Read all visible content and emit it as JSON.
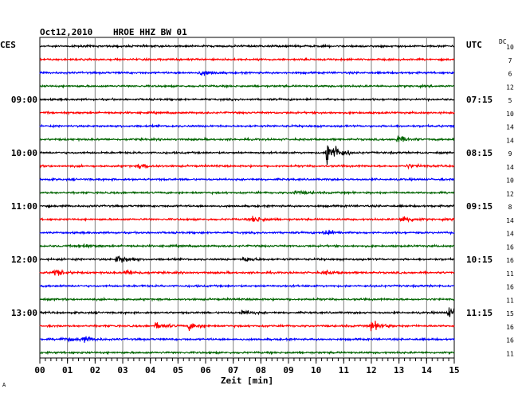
{
  "header": {
    "date": "Oct12,2010",
    "station": "HROE HHZ BW 01",
    "left_zone": "CES",
    "right_zone": "UTC",
    "dc_label": "DC"
  },
  "footer": {
    "xlabel": "Zeit [min]",
    "corner_mark": "A"
  },
  "chart_data": {
    "type": "line",
    "title": "Oct12,2010   HROE HHZ BW 01",
    "xlabel": "Zeit [min]",
    "x_range": [
      0,
      15
    ],
    "x_ticks": [
      "00",
      "01",
      "02",
      "03",
      "04",
      "05",
      "06",
      "07",
      "08",
      "09",
      "10",
      "11",
      "12",
      "13",
      "14",
      "15"
    ],
    "trace_count": 24,
    "trace_colors": [
      "#000000",
      "#ff0000",
      "#0000ff",
      "#006400"
    ],
    "left_time_labels": [
      {
        "trace": 4,
        "label": "09:00"
      },
      {
        "trace": 8,
        "label": "10:00"
      },
      {
        "trace": 12,
        "label": "11:00"
      },
      {
        "trace": 16,
        "label": "12:00"
      },
      {
        "trace": 20,
        "label": "13:00"
      }
    ],
    "right_time_labels": [
      {
        "trace": 4,
        "label": "07:15"
      },
      {
        "trace": 8,
        "label": "08:15"
      },
      {
        "trace": 12,
        "label": "09:15"
      },
      {
        "trace": 16,
        "label": "10:15"
      },
      {
        "trace": 20,
        "label": "11:15"
      }
    ],
    "dc_values": [
      "10",
      "7",
      "6",
      "12",
      "5",
      "10",
      "14",
      "14",
      "9",
      "14",
      "10",
      "12",
      "8",
      "14",
      "14",
      "16",
      "16",
      "11",
      "16",
      "11",
      "15",
      "16",
      "16",
      "11"
    ],
    "events": [
      {
        "trace": 2,
        "minute": 5.8,
        "amplitude": 0.3
      },
      {
        "trace": 7,
        "minute": 12.9,
        "amplitude": 0.4
      },
      {
        "trace": 8,
        "minute": 10.4,
        "amplitude": 1.7
      },
      {
        "trace": 9,
        "minute": 3.6,
        "amplitude": 0.25
      },
      {
        "trace": 9,
        "minute": 13.3,
        "amplitude": 0.2
      },
      {
        "trace": 11,
        "minute": 9.2,
        "amplitude": 0.2
      },
      {
        "trace": 13,
        "minute": 7.7,
        "amplitude": 0.35
      },
      {
        "trace": 13,
        "minute": 13.1,
        "amplitude": 0.4
      },
      {
        "trace": 14,
        "minute": 10.3,
        "amplitude": 0.35
      },
      {
        "trace": 15,
        "minute": 1.4,
        "amplitude": 0.25
      },
      {
        "trace": 16,
        "minute": 2.8,
        "amplitude": 0.5
      },
      {
        "trace": 16,
        "minute": 7.4,
        "amplitude": 0.25
      },
      {
        "trace": 17,
        "minute": 0.5,
        "amplitude": 0.4
      },
      {
        "trace": 17,
        "minute": 3.1,
        "amplitude": 0.3
      },
      {
        "trace": 17,
        "minute": 10.3,
        "amplitude": 0.2
      },
      {
        "trace": 20,
        "minute": 7.3,
        "amplitude": 0.25
      },
      {
        "trace": 20,
        "minute": 14.8,
        "amplitude": 0.55
      },
      {
        "trace": 21,
        "minute": 4.2,
        "amplitude": 0.35
      },
      {
        "trace": 21,
        "minute": 5.4,
        "amplitude": 0.4
      },
      {
        "trace": 21,
        "minute": 12.0,
        "amplitude": 0.55
      },
      {
        "trace": 22,
        "minute": 1.5,
        "amplitude": 0.35
      },
      {
        "trace": 22,
        "minute": 0.8,
        "amplitude": 0.25
      }
    ]
  }
}
